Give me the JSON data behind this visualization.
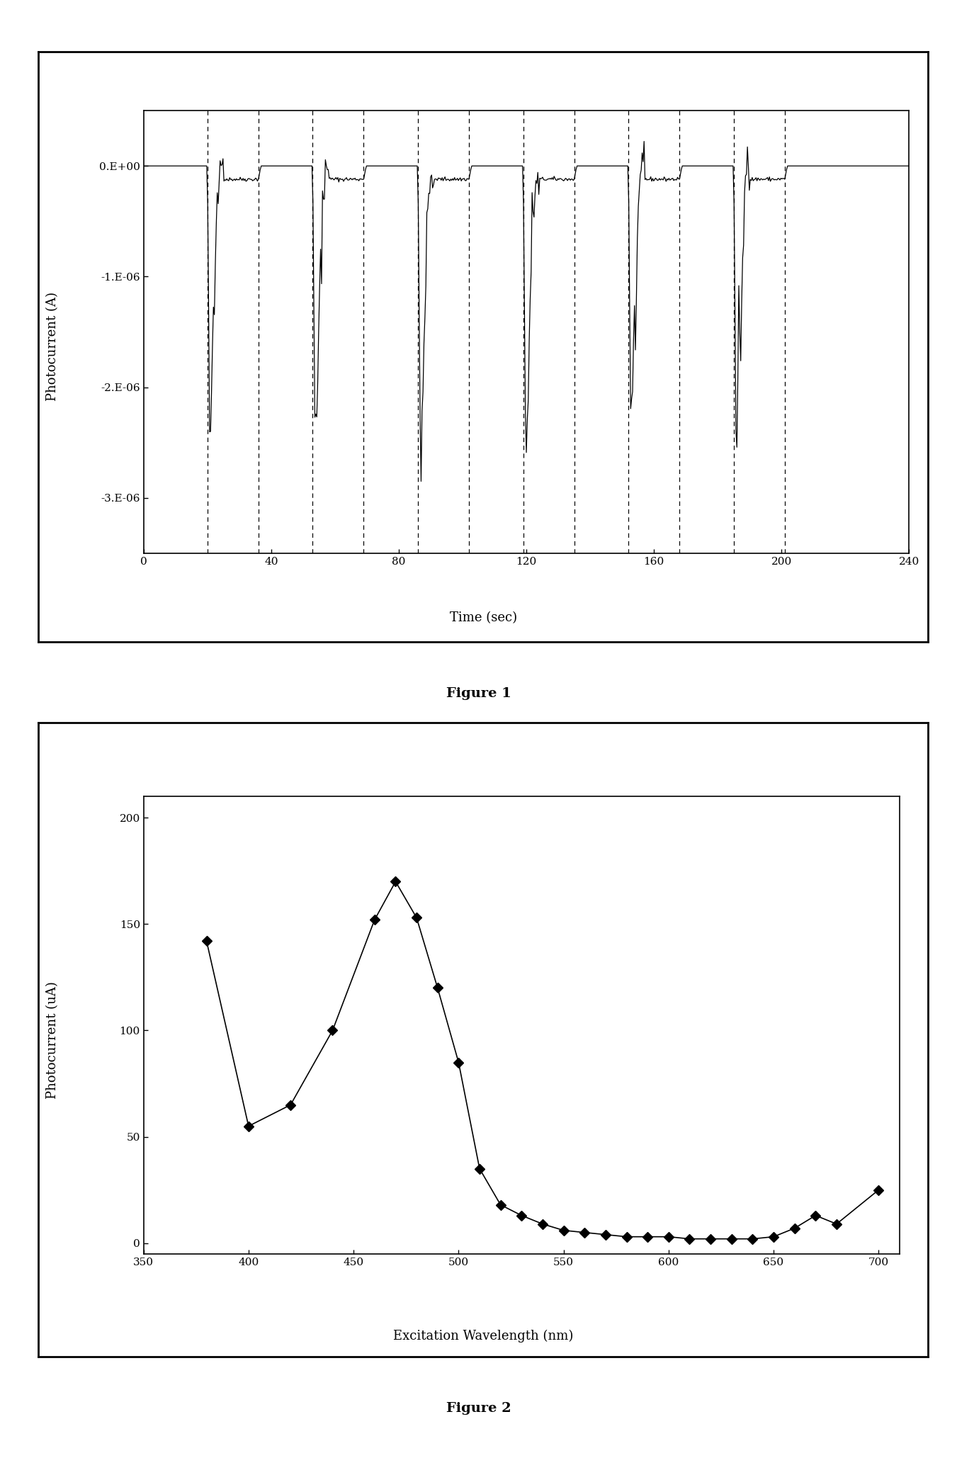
{
  "fig1": {
    "xlabel": "Time (sec)",
    "ylabel": "Photocurrent (A)",
    "xlim": [
      0,
      240
    ],
    "ylim": [
      -3.5e-06,
      5e-07
    ],
    "xticks": [
      0,
      40,
      80,
      120,
      160,
      200,
      240
    ],
    "yticks": [
      0.0,
      -1e-06,
      -2e-06,
      -3e-06
    ],
    "ytick_labels": [
      "0.E+00",
      "-1.E-06",
      "-2.E-06",
      "-3.E-06"
    ],
    "caption": "Figure 1",
    "n_cycles": 6,
    "cycle_period": 33,
    "on_duration": 16,
    "start_time": 20,
    "baseline": 0.0,
    "plateau": -1.2e-07,
    "trough": -2.6e-06,
    "noise_amplitude": 3e-07
  },
  "fig2": {
    "xlabel": "Excitation Wavelength (nm)",
    "ylabel": "Photocurrent (uA)",
    "xlim": [
      350,
      710
    ],
    "ylim": [
      -5,
      210
    ],
    "xticks": [
      350,
      400,
      450,
      500,
      550,
      600,
      650,
      700
    ],
    "yticks": [
      0,
      50,
      100,
      150,
      200
    ],
    "caption": "Figure 2",
    "x_data": [
      380,
      400,
      420,
      440,
      460,
      470,
      480,
      490,
      500,
      510,
      520,
      530,
      540,
      550,
      560,
      570,
      580,
      590,
      600,
      610,
      620,
      630,
      640,
      650,
      660,
      670,
      680,
      700
    ],
    "y_data": [
      142,
      55,
      65,
      100,
      152,
      170,
      153,
      120,
      85,
      35,
      18,
      13,
      9,
      6,
      5,
      4,
      3,
      3,
      3,
      2,
      2,
      2,
      2,
      3,
      7,
      13,
      9,
      25
    ]
  },
  "background_color": "#ffffff",
  "line_color": "#000000",
  "font_family": "serif"
}
